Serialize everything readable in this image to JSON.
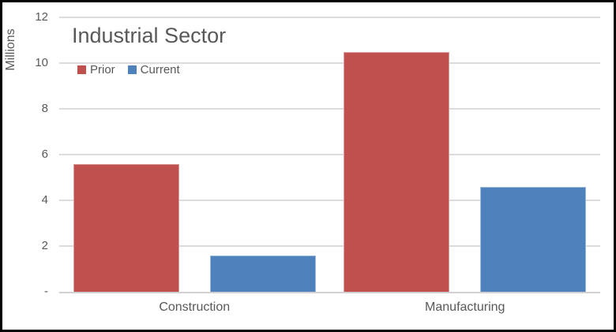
{
  "frame": {
    "background": "#FFFFFF",
    "border_color": "#000000"
  },
  "chart_data": {
    "type": "bar",
    "title": "Industrial Sector",
    "ylabel": "Millions",
    "xlabel": "",
    "categories": [
      "Construction",
      "Manufacturing"
    ],
    "series": [
      {
        "name": "Prior",
        "color": "#C0504D",
        "values": [
          5.6,
          10.5
        ]
      },
      {
        "name": "Current",
        "color": "#4F81BD",
        "values": [
          1.6,
          4.6
        ]
      }
    ],
    "ylim": [
      0,
      12
    ],
    "yticks": [
      {
        "value": 12,
        "label": "12"
      },
      {
        "value": 10,
        "label": "10"
      },
      {
        "value": 8,
        "label": "8"
      },
      {
        "value": 6,
        "label": "6"
      },
      {
        "value": 4,
        "label": "4"
      },
      {
        "value": 2,
        "label": "2"
      },
      {
        "value": 0,
        "label": "-"
      }
    ],
    "grid": true,
    "gridline_color": "#DCDCDC",
    "axis_line_color": "#D2D0D0",
    "text_color": "#595959",
    "legend_position": "top-left"
  }
}
